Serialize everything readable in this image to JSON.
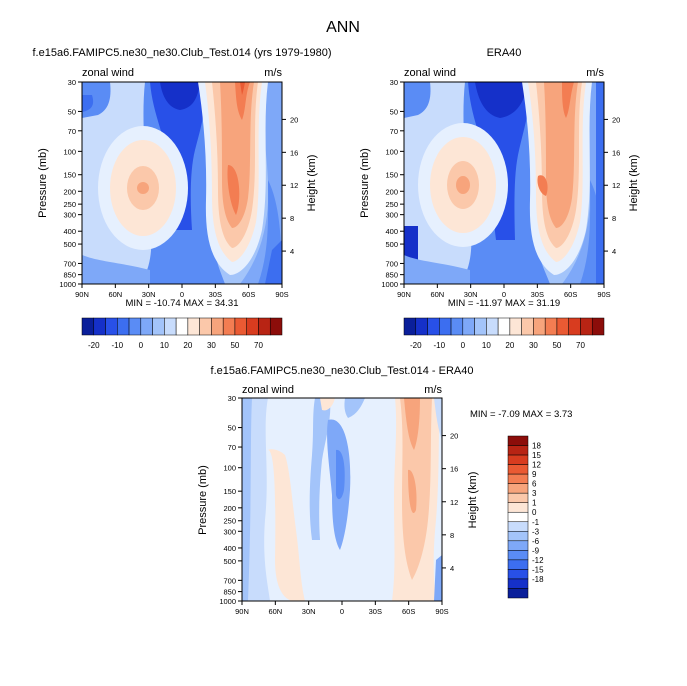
{
  "figure": {
    "title": "ANN"
  },
  "colors": {
    "cool": [
      "#0a1f9a",
      "#1530c9",
      "#2850e8",
      "#3c6ef0",
      "#5a8cf5",
      "#7ea8f8",
      "#a3c4fa",
      "#c8dcfc",
      "#e6f0fe"
    ],
    "warm": [
      "#fde6d6",
      "#fbc8aa",
      "#f7a47c",
      "#f37d52",
      "#ea5a33",
      "#d83c1f",
      "#b82414",
      "#8c0d0a"
    ]
  },
  "chart_data": [
    {
      "type": "contour",
      "title": "f.e15a6.FAMIPC5.ne30_ne30.Club_Test.014 (yrs 1979-1980)",
      "field_label": "zonal wind",
      "units": "m/s",
      "ylabel": "Pressure (mb)",
      "ylabel_right": "Height (km)",
      "yticks": [
        "30",
        "50",
        "70",
        "100",
        "150",
        "200",
        "250",
        "300",
        "400",
        "500",
        "700",
        "850",
        "1000"
      ],
      "yticks_right": [
        "4",
        "8",
        "12",
        "16",
        "20"
      ],
      "xticks": [
        "90N",
        "60N",
        "30N",
        "0",
        "30S",
        "60S",
        "90S"
      ],
      "stats": "MIN = -10.74  MAX =  34.31",
      "min": -10.74,
      "max": 34.31,
      "colorbar_labels": [
        "-20",
        "-10",
        "0",
        "10",
        "20",
        "30",
        "50",
        "70"
      ]
    },
    {
      "type": "contour",
      "title": "ERA40",
      "field_label": "zonal wind",
      "units": "m/s",
      "ylabel": "Pressure (mb)",
      "ylabel_right": "Height (km)",
      "yticks": [
        "30",
        "50",
        "70",
        "100",
        "150",
        "200",
        "250",
        "300",
        "400",
        "500",
        "700",
        "850",
        "1000"
      ],
      "yticks_right": [
        "4",
        "8",
        "12",
        "16",
        "20"
      ],
      "xticks": [
        "90N",
        "60N",
        "30N",
        "0",
        "30S",
        "60S",
        "90S"
      ],
      "stats": "MIN = -11.97  MAX =  31.19",
      "min": -11.97,
      "max": 31.19,
      "colorbar_labels": [
        "-20",
        "-10",
        "0",
        "10",
        "20",
        "30",
        "50",
        "70"
      ]
    },
    {
      "type": "contour",
      "title": "f.e15a6.FAMIPC5.ne30_ne30.Club_Test.014 - ERA40",
      "field_label": "zonal wind",
      "units": "m/s",
      "ylabel": "Pressure (mb)",
      "ylabel_right": "Height (km)",
      "yticks": [
        "30",
        "50",
        "70",
        "100",
        "150",
        "200",
        "250",
        "300",
        "400",
        "500",
        "700",
        "850",
        "1000"
      ],
      "yticks_right": [
        "4",
        "8",
        "12",
        "16",
        "20"
      ],
      "xticks": [
        "90N",
        "60N",
        "30N",
        "0",
        "30S",
        "60S",
        "90S"
      ],
      "stats": "MIN = -7.09  MAX =  3.73",
      "min": -7.09,
      "max": 3.73,
      "colorbar_labels": [
        "18",
        "15",
        "12",
        "9",
        "6",
        "3",
        "1",
        "0",
        "-1",
        "-3",
        "-6",
        "-9",
        "-12",
        "-15",
        "-18"
      ]
    }
  ]
}
